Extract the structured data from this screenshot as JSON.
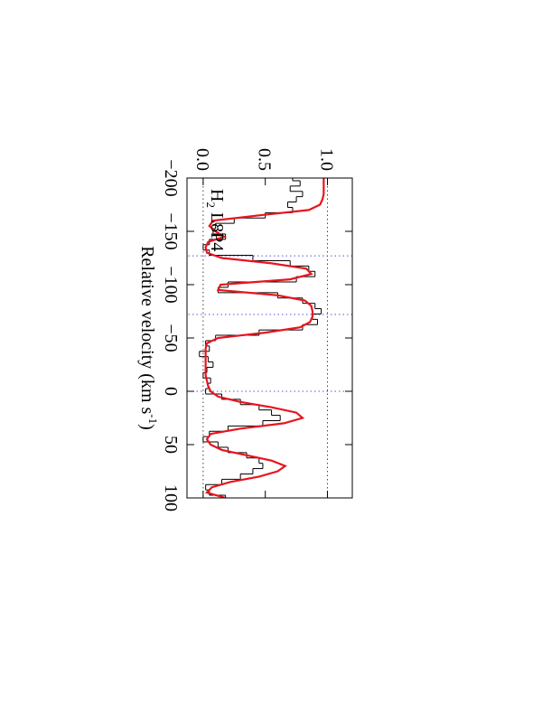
{
  "chart_data": {
    "type": "spectrum",
    "xlabel": "Relative velocity (km s",
    "xlabel_sup": "-1",
    "xlabel_end": ")",
    "annotation": {
      "text": "H",
      "sub": "2",
      "rest": " L8P4"
    },
    "xlim": [
      -200,
      100
    ],
    "xticks": [
      {
        "value": -200,
        "label": "−200"
      },
      {
        "value": -150,
        "label": "−150"
      },
      {
        "value": -100,
        "label": "−100"
      },
      {
        "value": -50,
        "label": "−50"
      },
      {
        "value": 0,
        "label": "0"
      },
      {
        "value": 50,
        "label": "50"
      },
      {
        "value": 100,
        "label": "100"
      }
    ],
    "ylim": [
      -0.13,
      1.2
    ],
    "yticks": [
      {
        "value": 0,
        "label": "0.0"
      },
      {
        "value": 0.5,
        "label": "0.5"
      },
      {
        "value": 1,
        "label": "1.0"
      }
    ],
    "hlines": [
      0,
      1
    ],
    "vlines": [
      -127,
      -72,
      0
    ],
    "x": [
      -200,
      -195,
      -190,
      -185,
      -180,
      -175,
      -170,
      -165,
      -160,
      -155,
      -150,
      -145,
      -140,
      -135,
      -130,
      -125,
      -120,
      -115,
      -110,
      -105,
      -100,
      -95,
      -90,
      -85,
      -80,
      -75,
      -70,
      -65,
      -60,
      -55,
      -50,
      -45,
      -40,
      -35,
      -30,
      -25,
      -20,
      -15,
      -10,
      -5,
      0,
      5,
      10,
      15,
      20,
      25,
      30,
      35,
      40,
      45,
      50,
      55,
      60,
      65,
      70,
      75,
      80,
      85,
      90,
      95,
      100
    ],
    "series": [
      {
        "kind": "step",
        "color": "#000000",
        "values": [
          0.72,
          0.78,
          0.7,
          0.8,
          0.75,
          0.68,
          0.72,
          0.5,
          0.25,
          0.1,
          0.08,
          0.18,
          0.05,
          0.0,
          0.05,
          0.4,
          0.7,
          0.85,
          0.9,
          0.75,
          0.2,
          0.12,
          0.6,
          0.8,
          0.9,
          0.95,
          0.88,
          0.92,
          0.8,
          0.45,
          0.1,
          0.02,
          0.05,
          -0.03,
          0.04,
          0.08,
          0.03,
          0.0,
          0.06,
          0.04,
          0.02,
          0.15,
          0.3,
          0.45,
          0.55,
          0.62,
          0.48,
          0.2,
          0.05,
          0.0,
          0.12,
          0.2,
          0.35,
          0.45,
          0.48,
          0.4,
          0.3,
          0.15,
          0.02,
          0.05,
          0.18
        ]
      },
      {
        "kind": "line",
        "color": "#e8141e",
        "values": [
          0.97,
          0.97,
          0.97,
          0.97,
          0.96,
          0.94,
          0.85,
          0.45,
          0.08,
          0.05,
          0.1,
          0.17,
          0.04,
          0.02,
          0.03,
          0.15,
          0.55,
          0.83,
          0.87,
          0.7,
          0.14,
          0.12,
          0.6,
          0.82,
          0.87,
          0.88,
          0.88,
          0.86,
          0.78,
          0.5,
          0.12,
          0.03,
          0.02,
          0.02,
          0.02,
          0.02,
          0.02,
          0.02,
          0.03,
          0.04,
          0.06,
          0.12,
          0.3,
          0.55,
          0.75,
          0.8,
          0.65,
          0.3,
          0.06,
          0.03,
          0.06,
          0.15,
          0.35,
          0.55,
          0.66,
          0.6,
          0.45,
          0.22,
          0.07,
          0.03,
          0.18
        ]
      }
    ]
  }
}
